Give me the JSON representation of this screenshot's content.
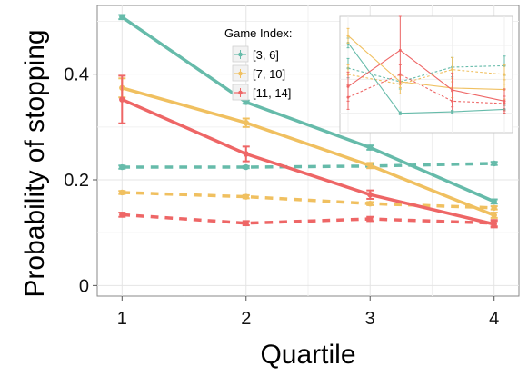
{
  "chart_data": {
    "type": "line",
    "xlabel": "Quartile",
    "ylabel": "Probability of stopping",
    "xlim": [
      0.8,
      4.2
    ],
    "ylim": [
      -0.02,
      0.53
    ],
    "x_ticks": [
      "1",
      "2",
      "3",
      "4"
    ],
    "y_ticks": [
      "0",
      "0.2",
      "0.4"
    ],
    "grid": true,
    "legend": {
      "title": "Game Index:",
      "placement": "top-center",
      "entries": [
        "[3, 6]",
        "[7, 10]",
        "[11, 14]"
      ]
    },
    "colors": {
      "[3, 6]": "#66bbaa",
      "[7, 10]": "#f0c060",
      "[11, 14]": "#ee6666"
    },
    "series": [
      {
        "name": "[3, 6]",
        "style": "solid",
        "x": [
          1,
          2,
          3,
          4
        ],
        "values": [
          0.508,
          0.347,
          0.261,
          0.159
        ],
        "err": [
          0.004,
          0.003,
          0.004,
          0.004
        ]
      },
      {
        "name": "[7, 10]",
        "style": "solid",
        "x": [
          1,
          2,
          3,
          4
        ],
        "values": [
          0.374,
          0.308,
          0.227,
          0.133
        ],
        "err": [
          0.018,
          0.008,
          0.005,
          0.005
        ]
      },
      {
        "name": "[11, 14]",
        "style": "solid",
        "x": [
          1,
          2,
          3,
          4
        ],
        "values": [
          0.352,
          0.249,
          0.172,
          0.116
        ],
        "err": [
          0.045,
          0.014,
          0.008,
          0.006
        ]
      },
      {
        "name": "[3, 6]",
        "style": "dashed",
        "x": [
          1,
          2,
          3,
          4
        ],
        "values": [
          0.224,
          0.224,
          0.226,
          0.231
        ],
        "err": [
          0.003,
          0.002,
          0.003,
          0.003
        ]
      },
      {
        "name": "[7, 10]",
        "style": "dashed",
        "x": [
          1,
          2,
          3,
          4
        ],
        "values": [
          0.176,
          0.168,
          0.155,
          0.147
        ],
        "err": [
          0.003,
          0.003,
          0.003,
          0.003
        ]
      },
      {
        "name": "[11, 14]",
        "style": "dashed",
        "x": [
          1,
          2,
          3,
          4
        ],
        "values": [
          0.134,
          0.118,
          0.126,
          0.118
        ],
        "err": [
          0.004,
          0.004,
          0.004,
          0.006
        ]
      }
    ],
    "inset": {
      "type": "line",
      "ylim": [
        0.29,
        0.53
      ],
      "series": [
        {
          "name": "[3, 6]",
          "style": "solid",
          "values": [
            0.475,
            0.33,
            0.333,
            0.338
          ],
          "err": [
            0.01,
            0.003,
            0.003,
            0.008
          ]
        },
        {
          "name": "[7, 10]",
          "style": "solid",
          "values": [
            0.49,
            0.395,
            0.382,
            0.379
          ],
          "err": [
            0.015,
            0.012,
            0.02,
            0.02
          ]
        },
        {
          "name": "[11, 14]",
          "style": "solid",
          "values": [
            0.385,
            0.46,
            0.378,
            0.355
          ],
          "err": [
            0.03,
            0.07,
            0.035,
            0.025
          ]
        },
        {
          "name": "[3, 6]",
          "style": "dashed",
          "values": [
            0.423,
            0.395,
            0.425,
            0.428
          ],
          "err": [
            0.02,
            0.015,
            0.02,
            0.02
          ]
        },
        {
          "name": "[7, 10]",
          "style": "dashed",
          "values": [
            0.41,
            0.39,
            0.42,
            0.41
          ],
          "err": [
            0.02,
            0.02,
            0.025,
            0.02
          ]
        },
        {
          "name": "[11, 14]",
          "style": "dashed",
          "values": [
            0.363,
            0.41,
            0.355,
            0.35
          ],
          "err": [
            0.025,
            0.02,
            0.02,
            0.015
          ]
        }
      ]
    }
  }
}
